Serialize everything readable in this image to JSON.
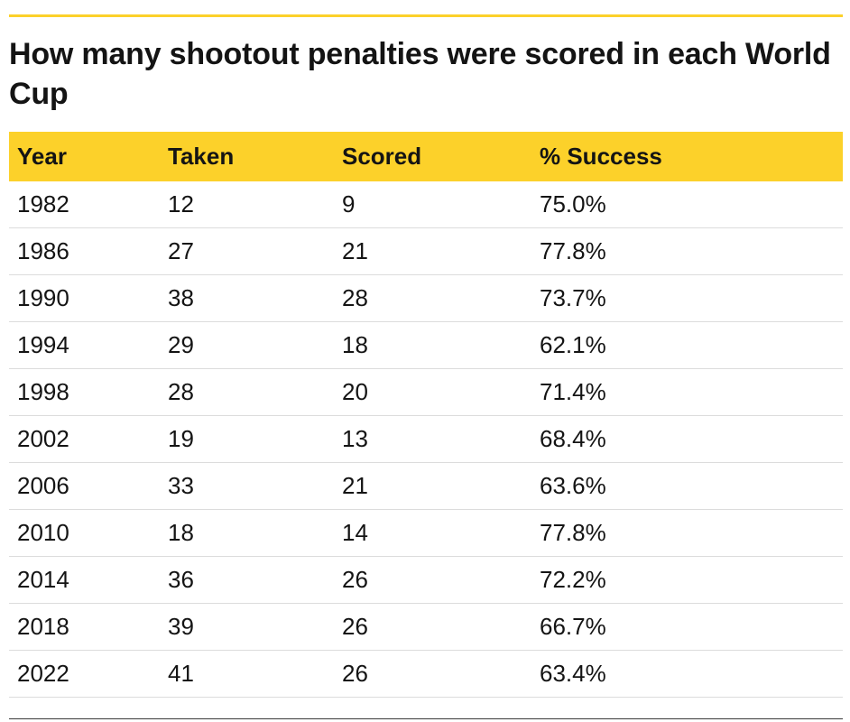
{
  "title": "How many shootout penalties were scored in each World Cup",
  "colors": {
    "accent": "#fcd12a",
    "text": "#141414",
    "row_divider": "#dcdcdc"
  },
  "chart_data": {
    "type": "table",
    "title": "How many shootout penalties were scored in each World Cup",
    "columns": [
      "Year",
      "Taken",
      "Scored",
      "% Success"
    ],
    "rows": [
      [
        "1982",
        "12",
        "9",
        "75.0%"
      ],
      [
        "1986",
        "27",
        "21",
        "77.8%"
      ],
      [
        "1990",
        "38",
        "28",
        "73.7%"
      ],
      [
        "1994",
        "29",
        "18",
        "62.1%"
      ],
      [
        "1998",
        "28",
        "20",
        "71.4%"
      ],
      [
        "2002",
        "19",
        "13",
        "68.4%"
      ],
      [
        "2006",
        "33",
        "21",
        "63.6%"
      ],
      [
        "2010",
        "18",
        "14",
        "77.8%"
      ],
      [
        "2014",
        "36",
        "26",
        "72.2%"
      ],
      [
        "2018",
        "39",
        "26",
        "66.7%"
      ],
      [
        "2022",
        "41",
        "26",
        "63.4%"
      ]
    ]
  }
}
